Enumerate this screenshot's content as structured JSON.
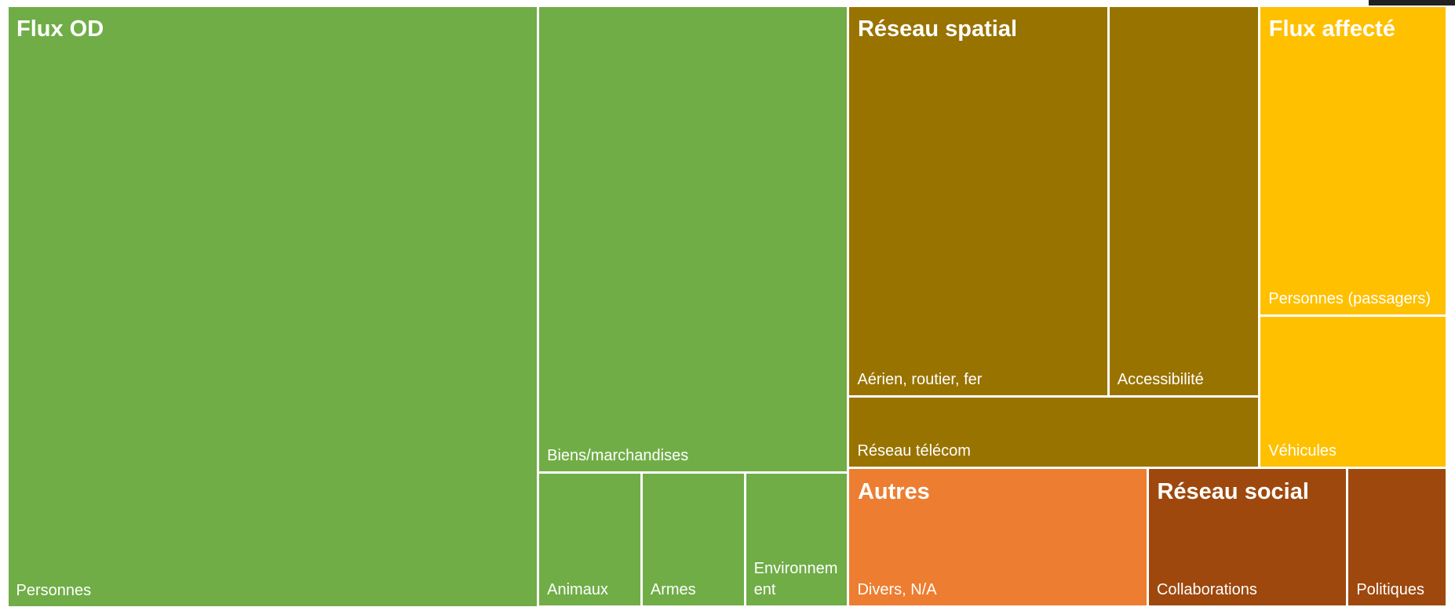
{
  "chart_data": {
    "type": "treemap",
    "groups": [
      {
        "name": "Flux OD",
        "color": "#70ad47",
        "children": [
          {
            "name": "Personnes",
            "value": 368
          },
          {
            "name": "Biens/marchandises",
            "value": 167
          },
          {
            "name": "Animaux",
            "value": 16
          },
          {
            "name": "Armes",
            "value": 16
          },
          {
            "name": "Environnement",
            "value": 16
          }
        ]
      },
      {
        "name": "Réseau spatial",
        "color": "#997300",
        "children": [
          {
            "name": "Aérien, routier, fer",
            "value": 117
          },
          {
            "name": "Accessibilité",
            "value": 68
          },
          {
            "name": "Réseau télécom",
            "value": 34
          }
        ]
      },
      {
        "name": "Flux affecté",
        "color": "#ffc000",
        "children": [
          {
            "name": "Personnes (passagers)",
            "value": 67
          },
          {
            "name": "Véhicules",
            "value": 33
          }
        ]
      },
      {
        "name": "Autres",
        "color": "#ed7d31",
        "children": [
          {
            "name": "Divers, N/A",
            "value": 48
          }
        ]
      },
      {
        "name": "Réseau social",
        "color": "#9e480e",
        "children": [
          {
            "name": "Collaborations",
            "value": 32
          },
          {
            "name": "Politiques",
            "value": 16
          }
        ]
      }
    ]
  }
}
